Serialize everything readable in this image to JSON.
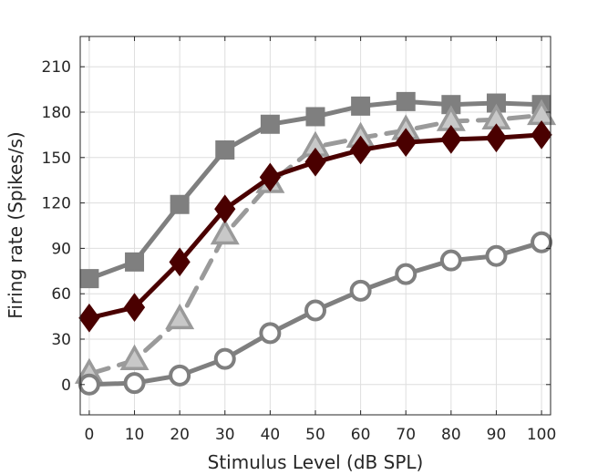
{
  "chart_data": {
    "type": "line",
    "title": "",
    "xlabel": "Stimulus Level (dB SPL)",
    "ylabel": "Firing rate (Spikes/s)",
    "xlim": [
      -2,
      102
    ],
    "ylim": [
      -20,
      230
    ],
    "x": [
      0,
      10,
      20,
      30,
      40,
      50,
      60,
      70,
      80,
      90,
      100
    ],
    "xticks": [
      0,
      10,
      20,
      30,
      40,
      50,
      60,
      70,
      80,
      90,
      100
    ],
    "yticks": [
      0,
      30,
      60,
      90,
      120,
      150,
      180,
      210
    ],
    "grid": true,
    "series": [
      {
        "marker": "square",
        "color": "#7f7f7f",
        "linestyle": "solid",
        "values": [
          70,
          81,
          119,
          155,
          172,
          177,
          184,
          187,
          185,
          186,
          185
        ]
      },
      {
        "marker": "triangle",
        "color": "#9a9a9a",
        "fill": "#c8c8c8",
        "linestyle": "dashed",
        "values": [
          7,
          16,
          43,
          99,
          133,
          157,
          163,
          168,
          174,
          175,
          178
        ]
      },
      {
        "marker": "diamond",
        "color": "#4a0000",
        "linestyle": "solid",
        "values": [
          44,
          51,
          81,
          116,
          137,
          147,
          155,
          160,
          162,
          163,
          165
        ]
      },
      {
        "marker": "circle",
        "color": "#7f7f7f",
        "fill": "#ffffff",
        "linestyle": "solid",
        "values": [
          0,
          1,
          6,
          17,
          34,
          49,
          62,
          73,
          82,
          85,
          94
        ]
      }
    ]
  }
}
